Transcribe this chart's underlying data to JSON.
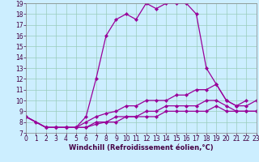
{
  "title": "",
  "xlabel": "Windchill (Refroidissement éolien,°C)",
  "bg_color": "#cceeff",
  "line_color": "#990099",
  "grid_color": "#99ccbb",
  "xmin": 0,
  "xmax": 23,
  "ymin": 7,
  "ymax": 19,
  "lines": [
    {
      "x": [
        0,
        1,
        2,
        3,
        4,
        5,
        6,
        7,
        8,
        9,
        10,
        11,
        12,
        13,
        14,
        15,
        16,
        17,
        18,
        19,
        20,
        21,
        22
      ],
      "y": [
        8.5,
        8.0,
        7.5,
        7.5,
        7.5,
        7.5,
        8.5,
        12.0,
        16.0,
        17.5,
        18.0,
        17.5,
        19.0,
        18.5,
        19.0,
        19.0,
        19.0,
        18.0,
        13.0,
        11.5,
        10.0,
        9.5,
        10.0
      ]
    },
    {
      "x": [
        0,
        2,
        3,
        4,
        5,
        6,
        7,
        8,
        9,
        10,
        11,
        12,
        13,
        14,
        15,
        16,
        17,
        18,
        19,
        20,
        21,
        22,
        23
      ],
      "y": [
        8.5,
        7.5,
        7.5,
        7.5,
        7.5,
        8.0,
        8.5,
        8.8,
        9.0,
        9.5,
        9.5,
        10.0,
        10.0,
        10.0,
        10.5,
        10.5,
        11.0,
        11.0,
        11.5,
        10.0,
        9.5,
        9.5,
        10.0
      ]
    },
    {
      "x": [
        0,
        2,
        3,
        4,
        5,
        6,
        7,
        8,
        9,
        10,
        11,
        12,
        13,
        14,
        15,
        16,
        17,
        18,
        19,
        20,
        21,
        22,
        23
      ],
      "y": [
        8.5,
        7.5,
        7.5,
        7.5,
        7.5,
        7.5,
        8.0,
        8.0,
        8.5,
        8.5,
        8.5,
        9.0,
        9.0,
        9.5,
        9.5,
        9.5,
        9.5,
        10.0,
        10.0,
        9.5,
        9.0,
        9.0,
        9.0
      ]
    },
    {
      "x": [
        0,
        2,
        3,
        4,
        5,
        6,
        7,
        8,
        9,
        10,
        11,
        12,
        13,
        14,
        15,
        16,
        17,
        18,
        19,
        20,
        21,
        22,
        23
      ],
      "y": [
        8.5,
        7.5,
        7.5,
        7.5,
        7.5,
        7.5,
        7.8,
        8.0,
        8.0,
        8.5,
        8.5,
        8.5,
        8.5,
        9.0,
        9.0,
        9.0,
        9.0,
        9.0,
        9.5,
        9.0,
        9.0,
        9.0,
        9.0
      ]
    }
  ],
  "xlabel_fontsize": 6,
  "tick_fontsize": 5.5,
  "linewidth": 0.9,
  "markersize": 2.2
}
